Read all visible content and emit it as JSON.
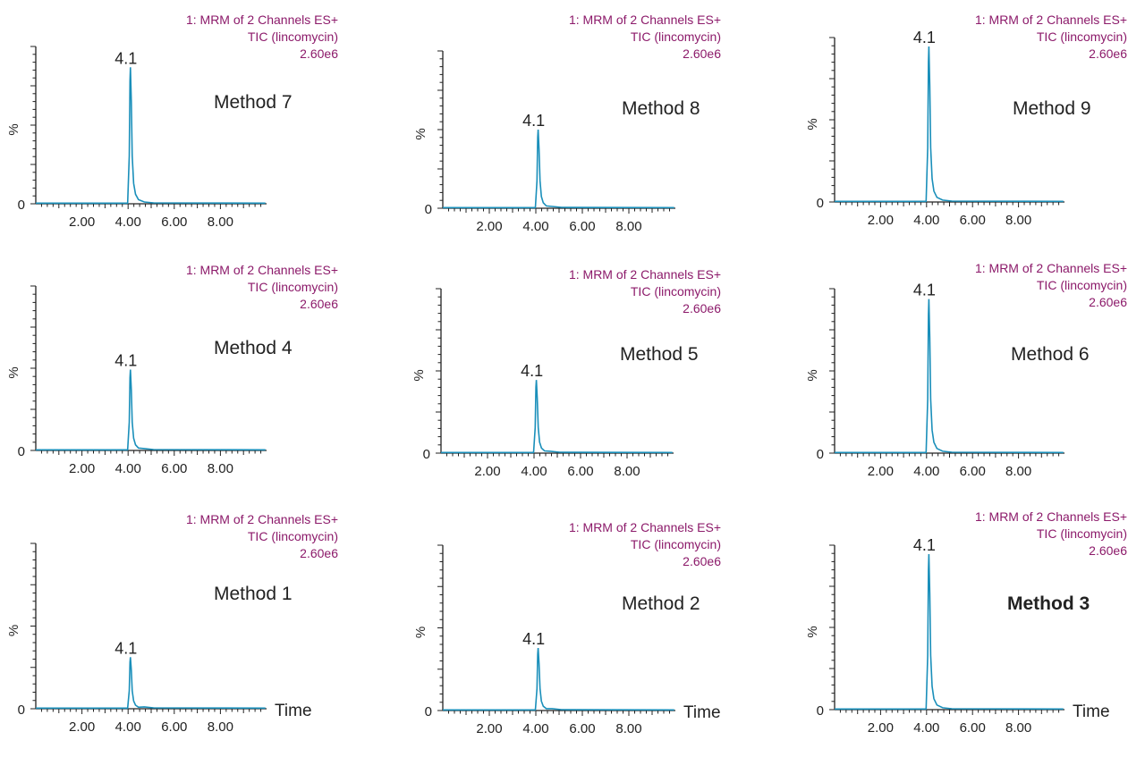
{
  "colors": {
    "trace": "#1a8fba",
    "header": "#8c1a6a",
    "axis": "#222222"
  },
  "chart_data": [
    {
      "type": "line",
      "panel": "Method 7",
      "label": "Method 7",
      "bold": false,
      "header": [
        "1: MRM of 2 Channels ES+",
        "TIC (lincomycin)",
        "2.60e6"
      ],
      "ylabel": "%",
      "y_tick_label": "0",
      "xlabel": "",
      "xticks": [
        2.0,
        4.0,
        6.0,
        8.0
      ],
      "xtick_labels": [
        "2.00",
        "4.00",
        "6.00",
        "8.00"
      ],
      "xlim": [
        0,
        10
      ],
      "ylim": [
        0,
        100
      ],
      "peak": {
        "x": 4.1,
        "y": 92,
        "label": "4.1"
      }
    },
    {
      "type": "line",
      "panel": "Method 8",
      "label": "Method 8",
      "bold": false,
      "header": [
        "1: MRM of 2 Channels ES+",
        "TIC (lincomycin)",
        "2.60e6"
      ],
      "ylabel": "%",
      "y_tick_label": "0",
      "xlabel": "",
      "xticks": [
        2.0,
        4.0,
        6.0,
        8.0
      ],
      "xtick_labels": [
        "2.00",
        "4.00",
        "6.00",
        "8.00"
      ],
      "xlim": [
        0,
        10
      ],
      "ylim": [
        0,
        100
      ],
      "peak": {
        "x": 4.1,
        "y": 53,
        "label": "4.1"
      }
    },
    {
      "type": "line",
      "panel": "Method 9",
      "label": "Method 9",
      "bold": false,
      "header": [
        "1: MRM of 2 Channels ES+",
        "TIC (lincomycin)",
        "2.60e6"
      ],
      "ylabel": "%",
      "y_tick_label": "0",
      "xlabel": "",
      "xticks": [
        2.0,
        4.0,
        6.0,
        8.0
      ],
      "xtick_labels": [
        "2.00",
        "4.00",
        "6.00",
        "8.00"
      ],
      "xlim": [
        0,
        10
      ],
      "ylim": [
        0,
        100
      ],
      "peak": {
        "x": 4.1,
        "y": 100,
        "label": "4.1"
      }
    },
    {
      "type": "line",
      "panel": "Method 4",
      "label": "Method 4",
      "bold": false,
      "header": [
        "1: MRM of 2 Channels ES+",
        "TIC (lincomycin)",
        "2.60e6"
      ],
      "ylabel": "%",
      "y_tick_label": "0",
      "xlabel": "",
      "xticks": [
        2.0,
        4.0,
        6.0,
        8.0
      ],
      "xtick_labels": [
        "2.00",
        "4.00",
        "6.00",
        "8.00"
      ],
      "xlim": [
        0,
        10
      ],
      "ylim": [
        0,
        100
      ],
      "peak": {
        "x": 4.1,
        "y": 52,
        "label": "4.1"
      }
    },
    {
      "type": "line",
      "panel": "Method 5",
      "label": "Method 5",
      "bold": false,
      "header": [
        "1: MRM of 2 Channels ES+",
        "TIC (lincomycin)",
        "2.60e6"
      ],
      "ylabel": "%",
      "y_tick_label": "0",
      "xlabel": "",
      "xticks": [
        2.0,
        4.0,
        6.0,
        8.0
      ],
      "xtick_labels": [
        "2.00",
        "4.00",
        "6.00",
        "8.00"
      ],
      "xlim": [
        0,
        10
      ],
      "ylim": [
        0,
        100
      ],
      "peak": {
        "x": 4.1,
        "y": 47,
        "label": "4.1"
      }
    },
    {
      "type": "line",
      "panel": "Method 6",
      "label": "Method 6",
      "bold": false,
      "header": [
        "1: MRM of 2 Channels ES+",
        "TIC (lincomycin)",
        "2.60e6"
      ],
      "ylabel": "%",
      "y_tick_label": "0",
      "xlabel": "",
      "xticks": [
        2.0,
        4.0,
        6.0,
        8.0
      ],
      "xtick_labels": [
        "2.00",
        "4.00",
        "6.00",
        "8.00"
      ],
      "xlim": [
        0,
        10
      ],
      "ylim": [
        0,
        100
      ],
      "peak": {
        "x": 4.1,
        "y": 99,
        "label": "4.1"
      }
    },
    {
      "type": "line",
      "panel": "Method 1",
      "label": "Method 1",
      "bold": false,
      "header": [
        "1: MRM of 2 Channels ES+",
        "TIC (lincomycin)",
        "2.60e6"
      ],
      "ylabel": "%",
      "y_tick_label": "0",
      "xlabel": "Time",
      "xticks": [
        2.0,
        4.0,
        6.0,
        8.0
      ],
      "xtick_labels": [
        "2.00",
        "4.00",
        "6.00",
        "8.00"
      ],
      "xlim": [
        0,
        10
      ],
      "ylim": [
        0,
        100
      ],
      "peak": {
        "x": 4.1,
        "y": 33,
        "label": "4.1"
      }
    },
    {
      "type": "line",
      "panel": "Method 2",
      "label": "Method 2",
      "bold": false,
      "header": [
        "1: MRM of 2 Channels ES+",
        "TIC (lincomycin)",
        "2.60e6"
      ],
      "ylabel": "%",
      "y_tick_label": "0",
      "xlabel": "Time",
      "xticks": [
        2.0,
        4.0,
        6.0,
        8.0
      ],
      "xtick_labels": [
        "2.00",
        "4.00",
        "6.00",
        "8.00"
      ],
      "xlim": [
        0,
        10
      ],
      "ylim": [
        0,
        100
      ],
      "peak": {
        "x": 4.1,
        "y": 40,
        "label": "4.1"
      }
    },
    {
      "type": "line",
      "panel": "Method 3",
      "label": "Method 3",
      "bold": true,
      "header": [
        "1: MRM of 2 Channels ES+",
        "TIC (lincomycin)",
        "2.60e6"
      ],
      "ylabel": "%",
      "y_tick_label": "0",
      "xlabel": "Time",
      "xticks": [
        2.0,
        4.0,
        6.0,
        8.0
      ],
      "xtick_labels": [
        "2.00",
        "4.00",
        "6.00",
        "8.00"
      ],
      "xlim": [
        0,
        10
      ],
      "ylim": [
        0,
        100
      ],
      "peak": {
        "x": 4.1,
        "y": 100,
        "label": "4.1"
      }
    }
  ]
}
